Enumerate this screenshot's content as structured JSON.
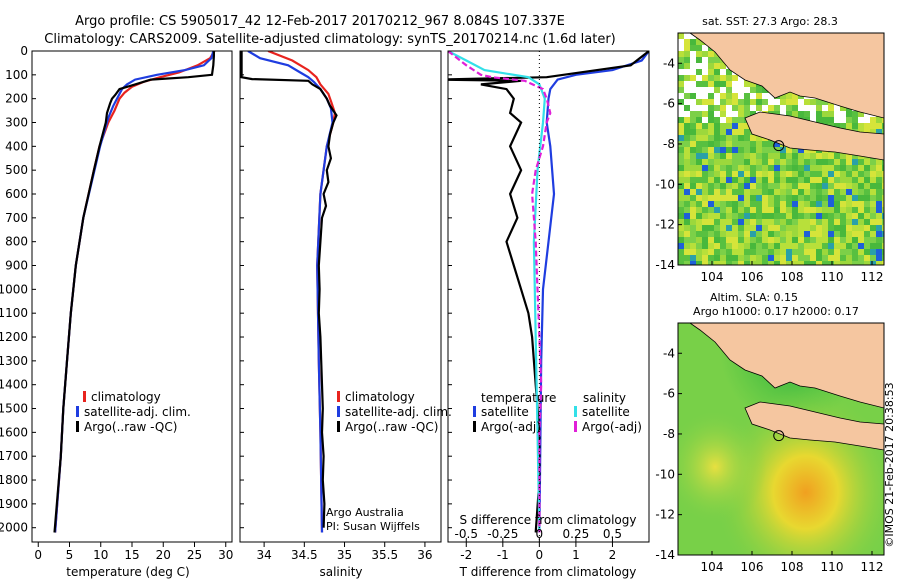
{
  "title_line1": "Argo profile: CS 5905017_42 12-Feb-2017 20170212_967 8.084S 107.337E",
  "title_line2": "Climatology: CARS2009. Satellite-adjusted climatology: synTS_20170214.nc (1.6d later)",
  "colors": {
    "clim": "#e8231e",
    "sat": "#1f3de0",
    "argo": "#000000",
    "sal_sat": "#33e0e8",
    "sal_argo": "#e020d8",
    "land": "#f5c6a0",
    "nodata": "#ffffff"
  },
  "chart_data": [
    {
      "type": "line",
      "name": "temperature",
      "xlabel": "temperature (deg C)",
      "xlim": [
        -1,
        31
      ],
      "ylim": [
        2060,
        0
      ],
      "xticks": [
        0,
        5,
        10,
        15,
        20,
        25,
        30
      ],
      "yticks": [
        0,
        100,
        200,
        300,
        400,
        500,
        600,
        700,
        800,
        900,
        1000,
        1100,
        1200,
        1300,
        1400,
        1500,
        1600,
        1700,
        1800,
        1900,
        2000
      ],
      "legend": [
        "climatology",
        "satellite-adj. clim.",
        "Argo(..raw -QC)"
      ],
      "series": [
        {
          "name": "climatology",
          "color_key": "clim",
          "depth": [
            0,
            30,
            60,
            90,
            110,
            130,
            150,
            175,
            200,
            250,
            300,
            400,
            500,
            700,
            900,
            1100,
            1300,
            1500,
            1700,
            2020
          ],
          "values": [
            28.2,
            27.5,
            25.5,
            22.5,
            19.5,
            16.8,
            15.0,
            13.8,
            13.0,
            12.2,
            11.2,
            9.8,
            8.9,
            7.2,
            6.0,
            5.2,
            4.6,
            4.0,
            3.6,
            2.7
          ]
        },
        {
          "name": "satellite-adj. clim.",
          "color_key": "sat",
          "depth": [
            0,
            30,
            60,
            80,
            100,
            120,
            140,
            160,
            190,
            230,
            280,
            400,
            500,
            700,
            900,
            1100,
            1300,
            1500,
            1700,
            2020
          ],
          "values": [
            28.0,
            27.7,
            26.5,
            23.5,
            19.0,
            15.5,
            14.2,
            13.4,
            12.8,
            12.0,
            11.2,
            9.9,
            9.0,
            7.2,
            6.0,
            5.2,
            4.6,
            4.0,
            3.6,
            2.7
          ]
        },
        {
          "name": "Argo(..raw -QC)",
          "color_key": "argo",
          "depth": [
            0,
            20,
            60,
            100,
            110,
            120,
            140,
            160,
            185,
            200,
            220,
            260,
            300,
            400,
            500,
            700,
            900,
            1100,
            1300,
            1500,
            1700,
            2020
          ],
          "values": [
            28.1,
            28.1,
            28.0,
            27.8,
            24.0,
            18.0,
            15.5,
            13.0,
            12.3,
            11.8,
            11.5,
            11.0,
            10.8,
            9.8,
            8.9,
            7.2,
            6.0,
            5.2,
            4.6,
            4.0,
            3.6,
            2.6
          ]
        }
      ]
    },
    {
      "type": "line",
      "name": "salinity",
      "xlabel": "salinity",
      "xlim": [
        33.7,
        36.2
      ],
      "ylim": [
        2060,
        0
      ],
      "xticks": [
        34,
        34.5,
        35,
        35.5,
        36
      ],
      "xticklabels": [
        "34",
        "34.5",
        "35",
        "35.5",
        "36"
      ],
      "legend": [
        "climatology",
        "satellite-adj. clim.",
        "Argo(..raw -QC)"
      ],
      "annotation": [
        "Argo Australia",
        "PI: Susan Wijffels"
      ],
      "series": [
        {
          "name": "climatology",
          "color_key": "clim",
          "depth": [
            0,
            40,
            80,
            110,
            140,
            180,
            220,
            260,
            300,
            400,
            600,
            900,
            1300,
            1600,
            2020
          ],
          "values": [
            34.05,
            34.35,
            34.55,
            34.65,
            34.7,
            34.8,
            34.84,
            34.88,
            34.86,
            34.78,
            34.7,
            34.66,
            34.68,
            34.7,
            34.72
          ]
        },
        {
          "name": "satellite-adj. clim.",
          "color_key": "sat",
          "depth": [
            0,
            30,
            60,
            90,
            110,
            130,
            160,
            200,
            240,
            300,
            400,
            600,
            900,
            1300,
            1600,
            2020
          ],
          "values": [
            33.8,
            33.95,
            34.3,
            34.45,
            34.55,
            34.62,
            34.7,
            34.78,
            34.83,
            34.85,
            34.78,
            34.7,
            34.66,
            34.68,
            34.7,
            34.72
          ]
        },
        {
          "name": "Argo(..raw -QC)",
          "color_key": "argo",
          "depth": [
            0,
            110,
            118,
            125,
            140,
            160,
            200,
            230,
            270,
            300,
            350,
            400,
            450,
            500,
            550,
            600,
            650,
            700,
            800,
            900,
            1000,
            1100,
            1200,
            1300,
            1400,
            1500,
            1600,
            1700,
            1800,
            1900,
            2000
          ],
          "values": [
            33.72,
            33.72,
            33.85,
            34.55,
            34.6,
            34.7,
            34.78,
            34.82,
            34.9,
            34.86,
            34.82,
            34.8,
            34.83,
            34.78,
            34.8,
            34.74,
            34.77,
            34.72,
            34.7,
            34.68,
            34.69,
            34.68,
            34.7,
            34.71,
            34.72,
            34.73,
            34.72,
            34.74,
            34.73,
            34.75,
            34.74
          ]
        }
      ]
    },
    {
      "type": "line",
      "name": "difference",
      "xlabel": "T difference from climatology",
      "xlabel_top": "S difference from climatology",
      "xlim": [
        -2.5,
        3.0
      ],
      "xticks": [
        -2,
        -1,
        0,
        1,
        2
      ],
      "xticks_top": [
        -0.5,
        -0.25,
        0,
        0.25,
        0.5
      ],
      "xtop_scale": 4,
      "legend_temp_title": "temperature",
      "legend_sal_title": "salinity",
      "legend": [
        "satellite",
        "Argo(-adj)",
        "satellite",
        "Argo(-adj)"
      ],
      "series": [
        {
          "name": "temperature satellite",
          "color_key": "sat",
          "depth": [
            0,
            40,
            80,
            100,
            120,
            160,
            200,
            300,
            400,
            600,
            800,
            1000,
            1300,
            2020
          ],
          "values": [
            3.0,
            2.8,
            2.0,
            1.0,
            0.5,
            0.3,
            0.25,
            0.2,
            0.3,
            0.4,
            0.25,
            0.1,
            0.05,
            0.0
          ]
        },
        {
          "name": "temperature Argo(-adj)",
          "color_key": "argo",
          "depth": [
            0,
            60,
            110,
            120,
            125,
            140,
            160,
            200,
            260,
            300,
            400,
            500,
            600,
            700,
            800,
            900,
            1000,
            1100,
            1200,
            1400,
            1600,
            1800,
            2020
          ],
          "values": [
            3.0,
            2.5,
            0.2,
            -2.8,
            -0.5,
            -1.6,
            -0.9,
            -0.7,
            -0.8,
            -0.5,
            -0.8,
            -0.5,
            -0.8,
            -0.6,
            -0.9,
            -0.7,
            -0.5,
            -0.3,
            -0.2,
            -0.1,
            0.0,
            0.0,
            -0.1
          ]
        },
        {
          "name": "salinity satellite",
          "color_key": "sal_sat",
          "depth": [
            0,
            40,
            80,
            110,
            140,
            200,
            300,
            500,
            800,
            1200,
            1600,
            2020
          ],
          "values": [
            -2.5,
            -2.0,
            -1.5,
            -0.3,
            0.0,
            0.15,
            0.1,
            -0.05,
            -0.15,
            -0.1,
            -0.05,
            0.0
          ]
        },
        {
          "name": "salinity Argo(-adj)",
          "color_key": "sal_argo",
          "depth": [
            0,
            60,
            100,
            110,
            125,
            160,
            200,
            260,
            300,
            400,
            500,
            600,
            800,
            1000,
            1200,
            1400,
            1600,
            2020
          ],
          "values": [
            -2.5,
            -2.0,
            -1.6,
            -1.3,
            -0.4,
            0.1,
            0.2,
            0.3,
            0.2,
            0.1,
            -0.1,
            -0.2,
            -0.1,
            -0.05,
            0.0,
            0.05,
            0.0,
            0.0
          ]
        }
      ]
    },
    {
      "type": "heatmap",
      "name": "sst map",
      "title": "sat. SST: 27.3 Argo: 28.3",
      "xticks": [
        104,
        106,
        108,
        110,
        112
      ],
      "yticks": [
        -4,
        -6,
        -8,
        -10,
        -12,
        -14
      ],
      "xlim": [
        102.3,
        112.6
      ],
      "ylim": [
        -14,
        -2.5
      ],
      "argo_lon": 107.337,
      "argo_lat": -8.084
    },
    {
      "type": "heatmap",
      "name": "sla map",
      "title": "Altim. SLA: 0.15",
      "subtitle": "Argo h1000: 0.17 h2000: 0.17",
      "xticks": [
        104,
        106,
        108,
        110,
        112
      ],
      "yticks": [
        -4,
        -6,
        -8,
        -10,
        -12,
        -14
      ],
      "xlim": [
        102.3,
        112.6
      ],
      "ylim": [
        -14,
        -2.5
      ],
      "argo_lon": 107.337,
      "argo_lat": -8.084
    }
  ],
  "footer": "©IMOS 21-Feb-2017 20:38:53"
}
